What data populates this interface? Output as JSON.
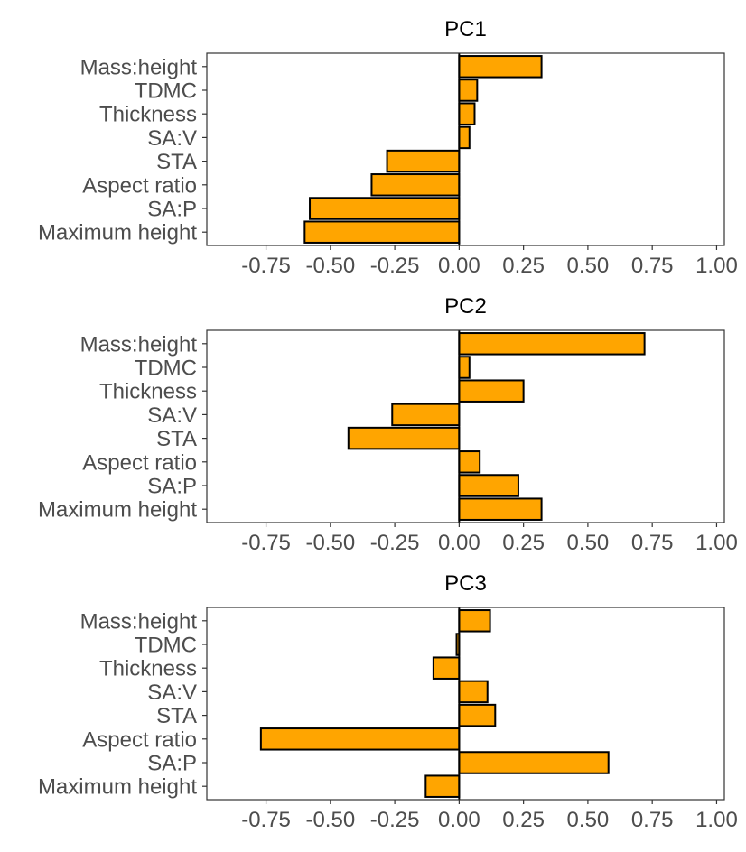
{
  "chart_data": [
    {
      "type": "bar",
      "orientation": "horizontal",
      "title": "PC1",
      "categories": [
        "Mass:height",
        "TDMC",
        "Thickness",
        "SA:V",
        "STA",
        "Aspect ratio",
        "SA:P",
        "Maximum height"
      ],
      "values": [
        0.32,
        0.07,
        0.06,
        0.04,
        -0.28,
        -0.34,
        -0.58,
        -0.6
      ],
      "xlim": [
        -0.98,
        1.03
      ],
      "xticks": [
        "-0.75",
        "-0.50",
        "-0.25",
        "0.00",
        "0.25",
        "0.50",
        "0.75",
        "1.00"
      ],
      "grid": false
    },
    {
      "type": "bar",
      "orientation": "horizontal",
      "title": "PC2",
      "categories": [
        "Mass:height",
        "TDMC",
        "Thickness",
        "SA:V",
        "STA",
        "Aspect ratio",
        "SA:P",
        "Maximum height"
      ],
      "values": [
        0.72,
        0.04,
        0.25,
        -0.26,
        -0.43,
        0.08,
        0.23,
        0.32
      ],
      "xlim": [
        -0.98,
        1.03
      ],
      "xticks": [
        "-0.75",
        "-0.50",
        "-0.25",
        "0.00",
        "0.25",
        "0.50",
        "0.75",
        "1.00"
      ],
      "grid": false
    },
    {
      "type": "bar",
      "orientation": "horizontal",
      "title": "PC3",
      "categories": [
        "Mass:height",
        "TDMC",
        "Thickness",
        "SA:V",
        "STA",
        "Aspect ratio",
        "SA:P",
        "Maximum height"
      ],
      "values": [
        0.12,
        -0.01,
        -0.1,
        0.11,
        0.14,
        -0.77,
        0.58,
        -0.13
      ],
      "xlim": [
        -0.98,
        1.03
      ],
      "xticks": [
        "-0.75",
        "-0.50",
        "-0.25",
        "0.00",
        "0.25",
        "0.50",
        "0.75",
        "1.00"
      ],
      "grid": false
    }
  ],
  "colors": {
    "bar_fill": "#FFA500",
    "bar_stroke": "#000000",
    "axis": "#333333",
    "label": "#4d4d4d",
    "title": "#000000"
  }
}
